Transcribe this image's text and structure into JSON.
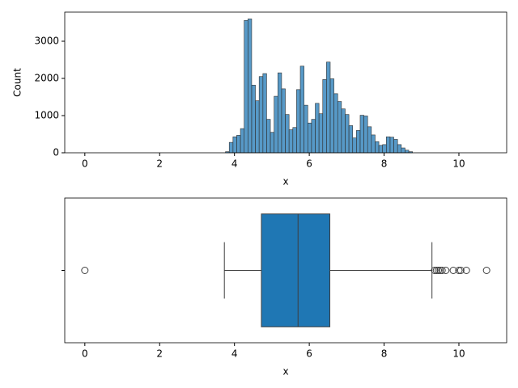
{
  "chart_data": [
    {
      "type": "histogram",
      "xlabel": "x",
      "ylabel": "Count",
      "color": "#1f77b4",
      "bins": [
        3.76,
        3.86,
        3.96,
        4.06,
        4.16,
        4.26,
        4.36,
        4.46,
        4.56,
        4.66,
        4.76,
        4.86,
        4.96,
        5.06,
        5.16,
        5.26,
        5.36,
        5.46,
        5.56,
        5.66,
        5.76,
        5.86,
        5.96,
        6.06,
        6.16,
        6.26,
        6.36,
        6.46,
        6.56,
        6.66,
        6.76,
        6.86,
        6.96,
        7.06,
        7.16,
        7.26,
        7.36,
        7.46,
        7.56,
        7.66,
        7.76,
        7.86,
        7.96,
        8.06,
        8.16,
        8.26,
        8.36,
        8.46,
        8.56,
        8.66,
        8.76
      ],
      "counts": [
        30,
        280,
        430,
        470,
        650,
        3560,
        3600,
        1820,
        1400,
        2050,
        2130,
        900,
        550,
        1520,
        2150,
        1720,
        1030,
        620,
        680,
        1700,
        2330,
        1280,
        800,
        900,
        1330,
        1050,
        1970,
        2440,
        1990,
        1590,
        1380,
        1180,
        1030,
        730,
        400,
        600,
        1010,
        990,
        700,
        480,
        300,
        200,
        220,
        430,
        420,
        360,
        220,
        130,
        70,
        30
      ],
      "xlim": [
        -0.537,
        11.277
      ],
      "ylim": [
        0,
        3783
      ],
      "xticks": [
        0,
        2,
        4,
        6,
        8,
        10
      ],
      "yticks": [
        0,
        1000,
        2000,
        3000
      ]
    },
    {
      "type": "box",
      "xlabel": "x",
      "color": "#1f77b4",
      "whislo": 3.73,
      "q1": 4.72,
      "med": 5.7,
      "q3": 6.55,
      "whishi": 9.28,
      "fliers": [
        0,
        9.35,
        9.4,
        9.45,
        9.5,
        9.55,
        9.65,
        9.85,
        10.0,
        10.05,
        10.2,
        10.74
      ],
      "xlim": [
        -0.537,
        11.277
      ],
      "xticks": [
        0,
        2,
        4,
        6,
        8,
        10
      ]
    }
  ]
}
